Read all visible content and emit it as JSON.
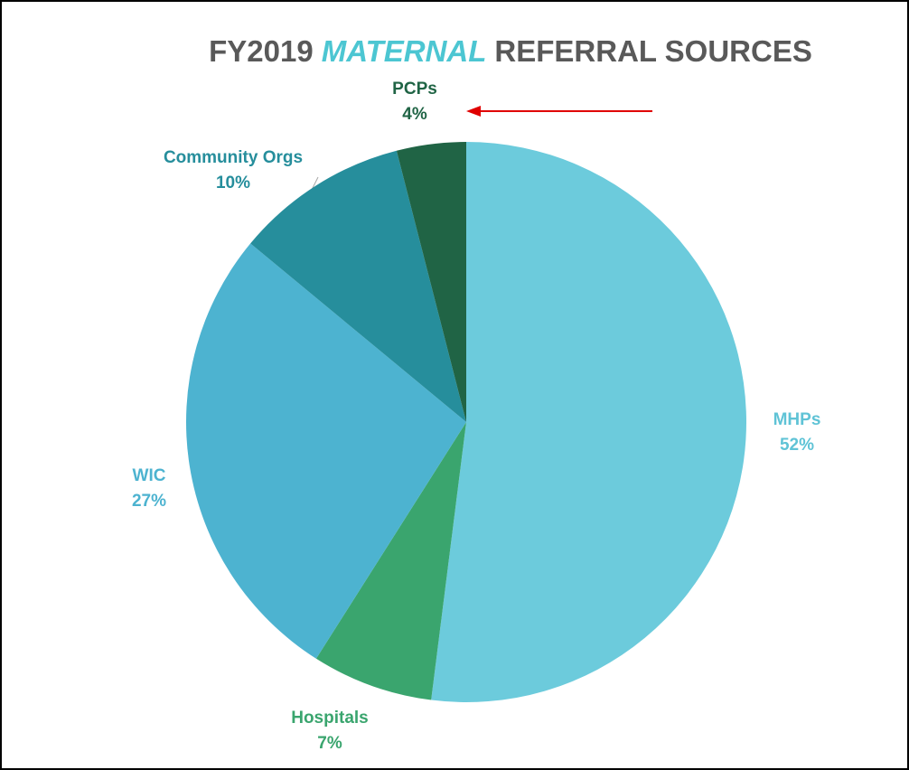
{
  "chart_data": {
    "type": "pie",
    "title_parts": [
      "FY2019",
      "MATERNAL",
      "REFERRAL SOURCES"
    ],
    "categories": [
      "MHPs",
      "Hospitals",
      "WIC",
      "Community Orgs",
      "PCPs"
    ],
    "values": [
      52,
      7,
      27,
      10,
      4
    ],
    "value_labels": [
      "52%",
      "7%",
      "27%",
      "10%",
      "4%"
    ],
    "colors": [
      "#6ccbdc",
      "#3aa56e",
      "#4db3d0",
      "#268e9c",
      "#206445"
    ],
    "title_highlight_color": "#4cc6d2"
  }
}
